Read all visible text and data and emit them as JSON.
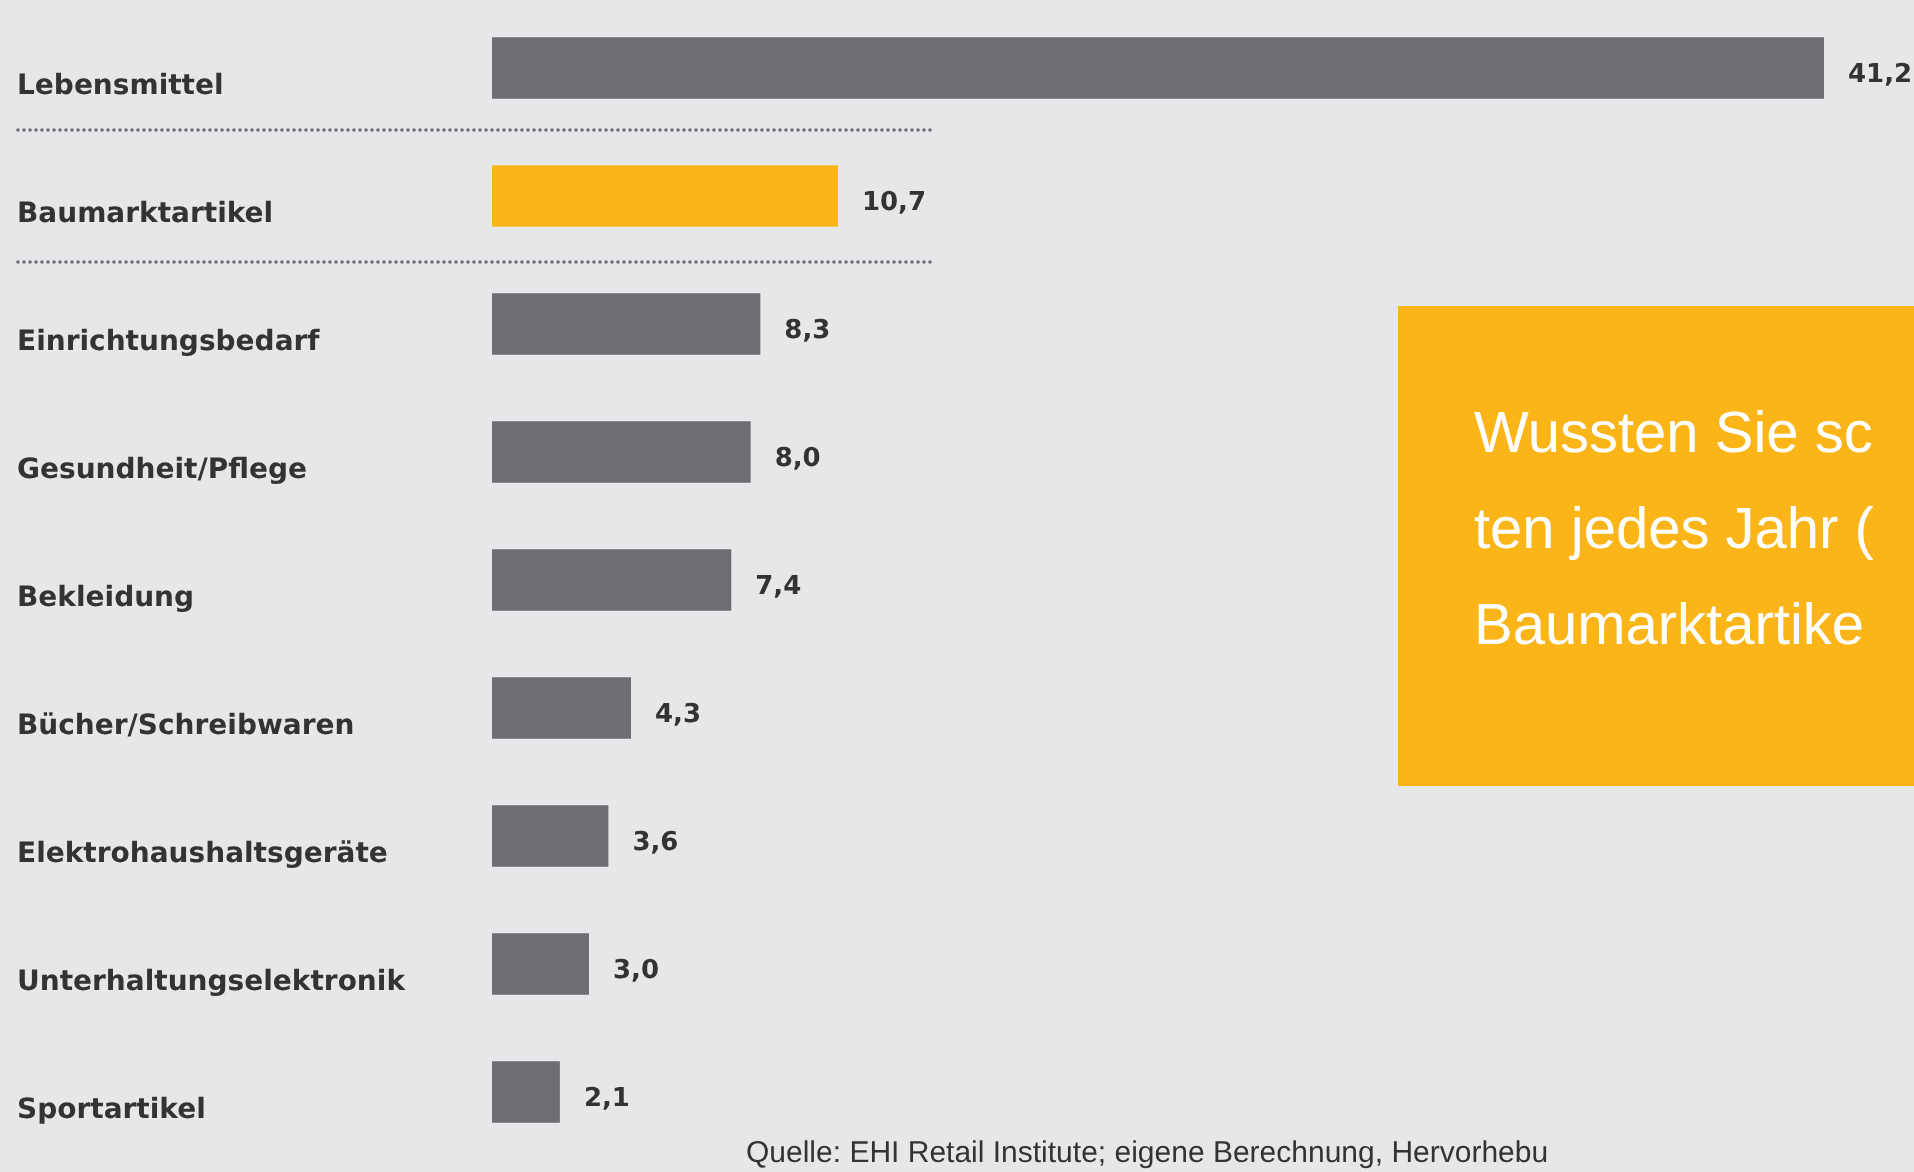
{
  "chart_data": {
    "type": "bar",
    "orientation": "horizontal",
    "categories": [
      "Lebensmittel",
      "Baumarktartikel",
      "Einrichtungsbedarf",
      "Gesundheit/Pflege",
      "Bekleidung",
      "Bücher/Schreibwaren",
      "Elektrohaushaltsgeräte",
      "Unterhaltungselektronik",
      "Sportartikel"
    ],
    "values": [
      41.2,
      10.7,
      8.3,
      8.0,
      7.4,
      4.3,
      3.6,
      3.0,
      2.1
    ],
    "colors": [
      "#6d6e71",
      "#fbb519",
      "#6d6e71",
      "#6d6e71",
      "#6d6e71",
      "#6d6e71",
      "#6d6e71",
      "#6d6e71",
      "#6d6e71"
    ],
    "value_labels": [
      "41,2",
      "10,7",
      "8,3",
      "8,0",
      "7,4",
      "4,3",
      "3,6",
      "3,0",
      "2,1"
    ],
    "annotations": [
      "Wussten Sie sc",
      "ten jedes Jahr (",
      "Baumarktartike",
      "Quelle: EHI Retail Institute; eigene Berechnung, Hervorhebu"
    ]
  }
}
